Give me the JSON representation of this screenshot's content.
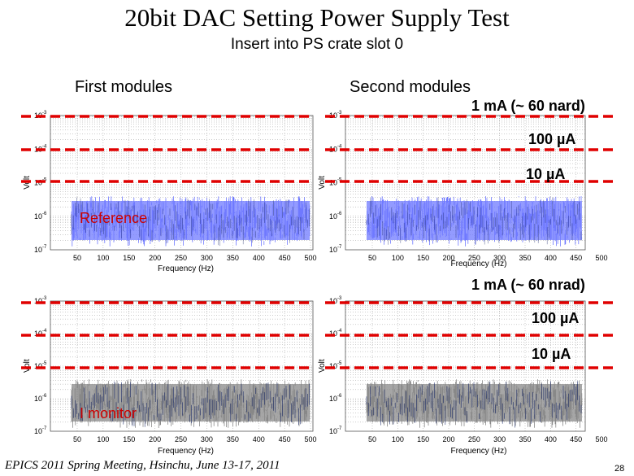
{
  "slide": {
    "title": "20bit DAC Setting Power Supply Test",
    "subtitle": "Insert into PS crate slot 0",
    "first_label": "First modules",
    "second_label": "Second modules",
    "footer": "EPICS 2011 Spring Meeting, Hsinchu, June 13-17, 2011",
    "page_number": "28"
  },
  "top_block": {
    "levels": [
      "1 mA (~ 60 nard)",
      "100 µA",
      "10 µA"
    ],
    "tag": "Reference",
    "trace_color": "#6f79ff"
  },
  "bottom_block": {
    "levels": [
      "1 mA (~ 60 nrad)",
      "100 µA",
      "10 µA"
    ],
    "tag": "I monitor",
    "trace_color": "#888888"
  },
  "plot_axes": {
    "x_ticks": [
      "50",
      "100",
      "150",
      "200",
      "250",
      "300",
      "350",
      "400",
      "450",
      "500"
    ],
    "x_label": "Frequency (Hz)",
    "y_exponents": [
      "-3",
      "-4",
      "-5",
      "-6",
      "-7"
    ],
    "y_label_top": "Volt",
    "y_label_bottom": "Volt"
  },
  "line_color": "#e00000"
}
